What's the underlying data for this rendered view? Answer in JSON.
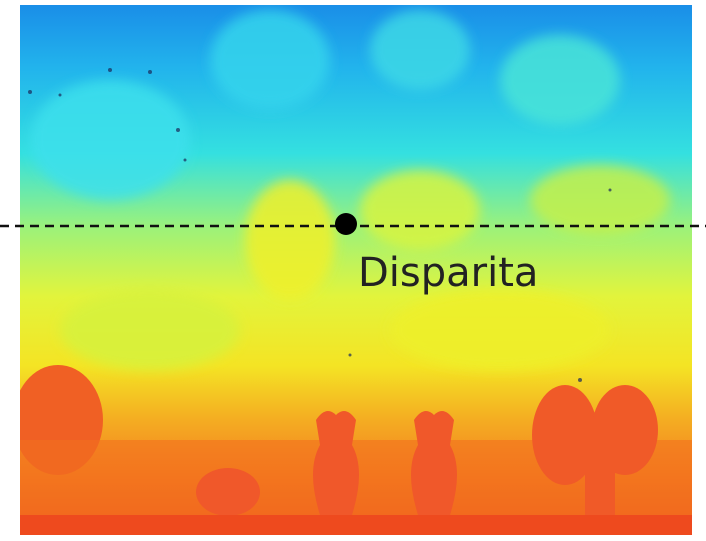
{
  "label": "Disparita"
}
